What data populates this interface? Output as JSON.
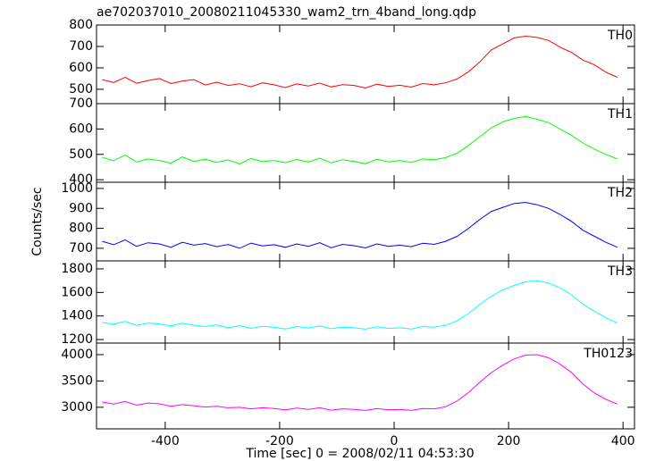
{
  "chart_data": [
    {
      "type": "line",
      "title": "ae702037010_20080211045330_wam2_trn_4band_long.qdp",
      "x": [
        -510,
        -490,
        -470,
        -450,
        -430,
        -410,
        -390,
        -370,
        -350,
        -330,
        -310,
        -290,
        -270,
        -250,
        -230,
        -210,
        -190,
        -170,
        -150,
        -130,
        -110,
        -90,
        -70,
        -50,
        -30,
        -10,
        10,
        30,
        50,
        70,
        90,
        110,
        130,
        150,
        170,
        190,
        210,
        230,
        250,
        270,
        290,
        310,
        330,
        350,
        370,
        390
      ],
      "xlim": [
        -520,
        420
      ],
      "ylim": [
        433,
        800
      ],
      "yticks": [
        500,
        600,
        700,
        800
      ],
      "series": [
        {
          "name": "TH0",
          "color": "#ff0000",
          "values": [
            545,
            532,
            556,
            528,
            541,
            550,
            527,
            538,
            545,
            520,
            533,
            518,
            526,
            512,
            530,
            521,
            508,
            525,
            515,
            529,
            511,
            522,
            518,
            506,
            524,
            513,
            519,
            510,
            527,
            521,
            530,
            548,
            582,
            628,
            684,
            712,
            740,
            748,
            742,
            728,
            697,
            672,
            636,
            614,
            580,
            556
          ]
        }
      ]
    },
    {
      "type": "line",
      "x": [
        -510,
        -490,
        -470,
        -450,
        -430,
        -410,
        -390,
        -370,
        -350,
        -330,
        -310,
        -290,
        -270,
        -250,
        -230,
        -210,
        -190,
        -170,
        -150,
        -130,
        -110,
        -90,
        -70,
        -50,
        -30,
        -10,
        10,
        30,
        50,
        70,
        90,
        110,
        130,
        150,
        170,
        190,
        210,
        230,
        250,
        270,
        290,
        310,
        330,
        350,
        370,
        390
      ],
      "xlim": [
        -520,
        420
      ],
      "ylim": [
        390,
        700
      ],
      "yticks": [
        400,
        500,
        600,
        700
      ],
      "series": [
        {
          "name": "TH1",
          "color": "#00ff00",
          "values": [
            488,
            475,
            497,
            470,
            482,
            476,
            465,
            490,
            472,
            481,
            468,
            478,
            462,
            484,
            471,
            476,
            467,
            480,
            470,
            485,
            466,
            479,
            472,
            463,
            481,
            470,
            476,
            468,
            482,
            479,
            487,
            505,
            535,
            570,
            605,
            628,
            642,
            650,
            638,
            625,
            600,
            575,
            545,
            520,
            500,
            482
          ]
        }
      ]
    },
    {
      "type": "line",
      "ylabel": "Counts/sec",
      "x": [
        -510,
        -490,
        -470,
        -450,
        -430,
        -410,
        -390,
        -370,
        -350,
        -330,
        -310,
        -290,
        -270,
        -250,
        -230,
        -210,
        -190,
        -170,
        -150,
        -130,
        -110,
        -90,
        -70,
        -50,
        -30,
        -10,
        10,
        30,
        50,
        70,
        90,
        110,
        130,
        150,
        170,
        190,
        210,
        230,
        250,
        270,
        290,
        310,
        330,
        350,
        370,
        390
      ],
      "xlim": [
        -520,
        420
      ],
      "ylim": [
        637,
        1031
      ],
      "yticks": [
        700,
        800,
        900,
        1000
      ],
      "series": [
        {
          "name": "TH2",
          "color": "#0000ff",
          "values": [
            735,
            718,
            742,
            710,
            728,
            722,
            705,
            730,
            716,
            724,
            708,
            719,
            700,
            726,
            712,
            718,
            705,
            722,
            710,
            728,
            703,
            720,
            713,
            702,
            722,
            710,
            716,
            708,
            725,
            720,
            735,
            760,
            800,
            845,
            885,
            905,
            925,
            930,
            918,
            900,
            870,
            835,
            790,
            760,
            730,
            705
          ]
        }
      ]
    },
    {
      "type": "line",
      "x": [
        -510,
        -490,
        -470,
        -450,
        -430,
        -410,
        -390,
        -370,
        -350,
        -330,
        -310,
        -290,
        -270,
        -250,
        -230,
        -210,
        -190,
        -170,
        -150,
        -130,
        -110,
        -90,
        -70,
        -50,
        -30,
        -10,
        10,
        30,
        50,
        70,
        90,
        110,
        130,
        150,
        170,
        190,
        210,
        230,
        250,
        270,
        290,
        310,
        330,
        350,
        370,
        390
      ],
      "xlim": [
        -520,
        420
      ],
      "ylim": [
        1170,
        1868
      ],
      "yticks": [
        1200,
        1400,
        1600,
        1800
      ],
      "series": [
        {
          "name": "TH3",
          "color": "#00ffff",
          "values": [
            1345,
            1330,
            1355,
            1320,
            1340,
            1332,
            1315,
            1338,
            1322,
            1310,
            1325,
            1300,
            1318,
            1295,
            1312,
            1305,
            1290,
            1310,
            1298,
            1315,
            1292,
            1305,
            1300,
            1288,
            1308,
            1295,
            1300,
            1290,
            1310,
            1305,
            1320,
            1360,
            1420,
            1500,
            1570,
            1620,
            1660,
            1690,
            1700,
            1680,
            1640,
            1580,
            1500,
            1440,
            1385,
            1340
          ]
        }
      ]
    },
    {
      "type": "line",
      "xlabel": "Time [sec] 0 = 2008/02/11 04:53:30",
      "x": [
        -510,
        -490,
        -470,
        -450,
        -430,
        -410,
        -390,
        -370,
        -350,
        -330,
        -310,
        -290,
        -270,
        -250,
        -230,
        -210,
        -190,
        -170,
        -150,
        -130,
        -110,
        -90,
        -70,
        -50,
        -30,
        -10,
        10,
        30,
        50,
        70,
        90,
        110,
        130,
        150,
        170,
        190,
        210,
        230,
        250,
        270,
        290,
        310,
        330,
        350,
        370,
        390
      ],
      "xlim": [
        -520,
        420
      ],
      "xticks": [
        -400,
        -200,
        0,
        200,
        400
      ],
      "ylim": [
        2590,
        4220
      ],
      "yticks": [
        3000,
        3500,
        4000
      ],
      "series": [
        {
          "name": "TH0123",
          "color": "#ff00ff",
          "values": [
            3100,
            3060,
            3110,
            3040,
            3080,
            3065,
            3020,
            3050,
            3030,
            3005,
            3020,
            2990,
            3000,
            2970,
            2990,
            2975,
            2950,
            2985,
            2960,
            2990,
            2945,
            2970,
            2960,
            2940,
            2975,
            2950,
            2960,
            2940,
            2975,
            2970,
            3010,
            3120,
            3280,
            3480,
            3660,
            3800,
            3920,
            3990,
            4000,
            3940,
            3820,
            3660,
            3440,
            3270,
            3150,
            3060
          ]
        }
      ]
    }
  ]
}
